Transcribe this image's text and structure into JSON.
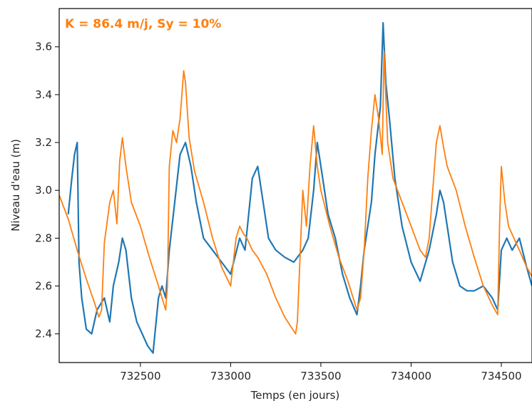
{
  "chart_data": {
    "type": "line",
    "annotation": "K = 86.4 m/j, Sy = 10%",
    "xlabel": "Temps (en jours)",
    "ylabel": "Niveau d'eau (m)",
    "xlim": [
      732050,
      734670
    ],
    "ylim": [
      2.28,
      3.76
    ],
    "xticks": [
      732500,
      733000,
      733500,
      734000,
      734500
    ],
    "yticks": [
      2.4,
      2.6,
      2.8,
      3.0,
      3.2,
      3.4,
      3.6
    ],
    "ytick_labels": [
      "2.4",
      "2.6",
      "2.8",
      "3.0",
      "3.2",
      "3.4",
      "3.6"
    ],
    "grid": false,
    "colors": {
      "observed": "#1f77b4",
      "simulated": "#ff7f0e"
    },
    "series": [
      {
        "color": "#1f77b4",
        "x": [
          732100,
          732120,
          732135,
          732150,
          732160,
          732175,
          732200,
          732230,
          732260,
          732300,
          732330,
          732350,
          732380,
          732400,
          732420,
          732450,
          732480,
          732510,
          732540,
          732570,
          732600,
          732620,
          732640,
          732660,
          732690,
          732720,
          732750,
          732780,
          732810,
          732850,
          732900,
          732950,
          733000,
          733050,
          733080,
          733100,
          733120,
          733150,
          733180,
          733210,
          733250,
          733300,
          733350,
          733400,
          733430,
          733460,
          733480,
          733510,
          733540,
          733580,
          733620,
          733660,
          733700,
          733720,
          733740,
          733760,
          733780,
          733800,
          733830,
          733845,
          733860,
          733880,
          733910,
          733950,
          734000,
          734050,
          734100,
          734140,
          734160,
          734180,
          734200,
          734230,
          734270,
          734310,
          734350,
          734400,
          734450,
          734480,
          734500,
          734530,
          734560,
          734600,
          734640,
          734670
        ],
        "y": [
          2.9,
          3.05,
          3.15,
          3.2,
          2.7,
          2.55,
          2.42,
          2.4,
          2.5,
          2.55,
          2.45,
          2.6,
          2.7,
          2.8,
          2.75,
          2.55,
          2.45,
          2.4,
          2.35,
          2.32,
          2.55,
          2.6,
          2.55,
          2.75,
          2.95,
          3.15,
          3.2,
          3.1,
          2.95,
          2.8,
          2.75,
          2.7,
          2.65,
          2.8,
          2.75,
          2.9,
          3.05,
          3.1,
          2.95,
          2.8,
          2.75,
          2.72,
          2.7,
          2.75,
          2.8,
          3.0,
          3.2,
          3.05,
          2.9,
          2.8,
          2.65,
          2.55,
          2.48,
          2.6,
          2.75,
          2.85,
          2.95,
          3.15,
          3.35,
          3.7,
          3.45,
          3.3,
          3.05,
          2.85,
          2.7,
          2.62,
          2.75,
          2.9,
          3.0,
          2.95,
          2.85,
          2.7,
          2.6,
          2.58,
          2.58,
          2.6,
          2.55,
          2.5,
          2.75,
          2.8,
          2.75,
          2.8,
          2.68,
          2.6
        ]
      },
      {
        "color": "#ff7f0e",
        "x": [
          732050,
          732100,
          732150,
          732200,
          732250,
          732270,
          732285,
          732300,
          732330,
          732350,
          732370,
          732385,
          732400,
          732420,
          732450,
          732500,
          732550,
          732600,
          732640,
          732650,
          732660,
          732680,
          732700,
          732720,
          732740,
          732750,
          732770,
          732800,
          732850,
          732900,
          732950,
          733000,
          733030,
          733050,
          733070,
          733090,
          733120,
          733150,
          733200,
          733250,
          733300,
          733360,
          733370,
          733400,
          733420,
          733440,
          733460,
          733480,
          733500,
          733550,
          733600,
          733650,
          733700,
          733720,
          733740,
          733760,
          733780,
          733800,
          733820,
          733840,
          733850,
          733870,
          733900,
          733950,
          734000,
          734050,
          734080,
          734100,
          734120,
          734140,
          734160,
          734180,
          734200,
          734250,
          734300,
          734350,
          734400,
          734450,
          734480,
          734490,
          734500,
          734520,
          734540,
          734600,
          734640,
          734670
        ],
        "y": [
          2.98,
          2.88,
          2.75,
          2.63,
          2.52,
          2.47,
          2.5,
          2.78,
          2.95,
          3.0,
          2.86,
          3.12,
          3.22,
          3.1,
          2.95,
          2.85,
          2.72,
          2.6,
          2.5,
          2.6,
          3.1,
          3.25,
          3.2,
          3.3,
          3.5,
          3.45,
          3.22,
          3.08,
          2.95,
          2.8,
          2.68,
          2.6,
          2.8,
          2.85,
          2.82,
          2.8,
          2.75,
          2.72,
          2.65,
          2.55,
          2.47,
          2.4,
          2.45,
          3.0,
          2.85,
          3.1,
          3.27,
          3.1,
          3.0,
          2.85,
          2.72,
          2.62,
          2.5,
          2.55,
          2.75,
          3.05,
          3.25,
          3.4,
          3.3,
          3.15,
          3.58,
          3.2,
          3.05,
          2.95,
          2.85,
          2.75,
          2.72,
          2.8,
          3.0,
          3.2,
          3.27,
          3.18,
          3.1,
          3.0,
          2.85,
          2.72,
          2.6,
          2.52,
          2.48,
          2.85,
          3.1,
          2.95,
          2.85,
          2.75,
          2.68,
          2.64
        ]
      }
    ]
  }
}
